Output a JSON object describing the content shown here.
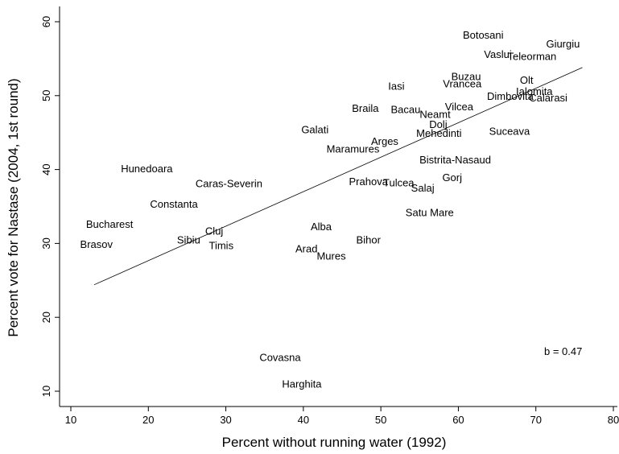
{
  "chart_data": {
    "type": "scatter",
    "xlabel": "Percent without running water (1992)",
    "ylabel": "Percent vote for Nastase (2004, 1st round)",
    "xlim": [
      9,
      80
    ],
    "ylim": [
      9,
      62
    ],
    "xticks": [
      10,
      20,
      30,
      40,
      50,
      60,
      70,
      80
    ],
    "yticks": [
      10,
      20,
      30,
      40,
      50,
      60
    ],
    "grid": false,
    "legend": "none",
    "annotation": "b = 0.47",
    "fit_line": {
      "x": [
        13,
        76
      ],
      "y": [
        24.4,
        53.8
      ]
    },
    "points": [
      {
        "label": "Botosani",
        "x": 63.2,
        "y": 58.2
      },
      {
        "label": "Giurgiu",
        "x": 73.5,
        "y": 57.0
      },
      {
        "label": "Vaslui",
        "x": 65.1,
        "y": 55.6
      },
      {
        "label": "Teleorman",
        "x": 69.5,
        "y": 55.3
      },
      {
        "label": "Buzau",
        "x": 61.0,
        "y": 52.6
      },
      {
        "label": "Vrancea",
        "x": 60.5,
        "y": 51.6
      },
      {
        "label": "Olt",
        "x": 68.8,
        "y": 52.1
      },
      {
        "label": "Ialomita",
        "x": 69.8,
        "y": 50.6
      },
      {
        "label": "Iasi",
        "x": 52.0,
        "y": 51.3
      },
      {
        "label": "Dimbovita",
        "x": 66.7,
        "y": 49.9
      },
      {
        "label": "Calarasi",
        "x": 71.6,
        "y": 49.7
      },
      {
        "label": "Vilcea",
        "x": 60.1,
        "y": 48.5
      },
      {
        "label": "Braila",
        "x": 48.0,
        "y": 48.3
      },
      {
        "label": "Bacau",
        "x": 53.2,
        "y": 48.1
      },
      {
        "label": "Neamt",
        "x": 57.0,
        "y": 47.5
      },
      {
        "label": "Dolj",
        "x": 57.4,
        "y": 46.1
      },
      {
        "label": "Mehedinti",
        "x": 57.5,
        "y": 44.9
      },
      {
        "label": "Galati",
        "x": 41.5,
        "y": 45.4
      },
      {
        "label": "Suceava",
        "x": 66.6,
        "y": 45.2
      },
      {
        "label": "Arges",
        "x": 50.5,
        "y": 43.8
      },
      {
        "label": "Maramures",
        "x": 46.4,
        "y": 42.8
      },
      {
        "label": "Bistrita-Nasaud",
        "x": 59.6,
        "y": 41.3
      },
      {
        "label": "Hunedoara",
        "x": 19.8,
        "y": 40.1
      },
      {
        "label": "Gorj",
        "x": 59.2,
        "y": 38.9
      },
      {
        "label": "Caras-Severin",
        "x": 30.4,
        "y": 38.1
      },
      {
        "label": "Prahova",
        "x": 48.4,
        "y": 38.4
      },
      {
        "label": "Tulcea",
        "x": 52.3,
        "y": 38.2
      },
      {
        "label": "Salaj",
        "x": 55.4,
        "y": 37.5
      },
      {
        "label": "Constanta",
        "x": 23.3,
        "y": 35.3
      },
      {
        "label": "Satu Mare",
        "x": 56.3,
        "y": 34.2
      },
      {
        "label": "Bucharest",
        "x": 15.0,
        "y": 32.6
      },
      {
        "label": "Alba",
        "x": 42.3,
        "y": 32.3
      },
      {
        "label": "Cluj",
        "x": 28.5,
        "y": 31.7
      },
      {
        "label": "Sibiu",
        "x": 25.2,
        "y": 30.5
      },
      {
        "label": "Bihor",
        "x": 48.4,
        "y": 30.5
      },
      {
        "label": "Brasov",
        "x": 13.3,
        "y": 29.9
      },
      {
        "label": "Timis",
        "x": 29.4,
        "y": 29.7
      },
      {
        "label": "Arad",
        "x": 40.4,
        "y": 29.3
      },
      {
        "label": "Mures",
        "x": 43.6,
        "y": 28.3
      },
      {
        "label": "Covasna",
        "x": 37.0,
        "y": 14.6
      },
      {
        "label": "Harghita",
        "x": 39.8,
        "y": 11.0
      }
    ]
  }
}
